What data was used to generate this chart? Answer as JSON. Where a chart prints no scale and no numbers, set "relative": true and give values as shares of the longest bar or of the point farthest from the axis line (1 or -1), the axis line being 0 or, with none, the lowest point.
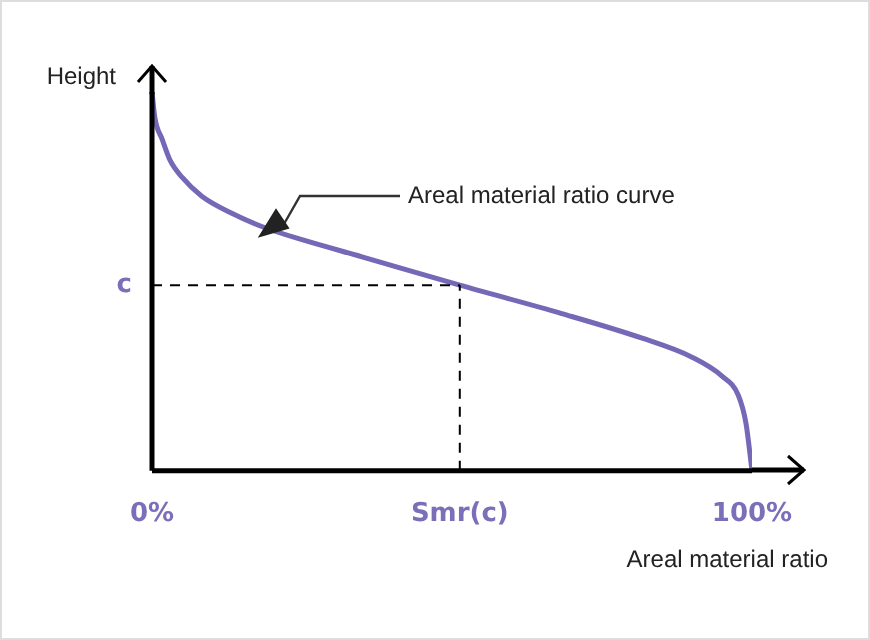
{
  "chart_data": {
    "type": "line",
    "relative": true,
    "xlabel": "Areal material ratio",
    "ylabel": "Height",
    "x": [
      0,
      0.5,
      1.7,
      3,
      5,
      8.3,
      13.3,
      18.3,
      25,
      35,
      51.3,
      68.3,
      81.7,
      90,
      95,
      97.7,
      99,
      100
    ],
    "values": [
      1,
      0.93,
      0.875,
      0.82,
      0.775,
      0.725,
      0.68,
      0.645,
      0.61,
      0.565,
      0.49,
      0.415,
      0.35,
      0.3,
      0.25,
      0.2,
      0.125,
      0
    ],
    "color": "#7469b6",
    "marker": "none",
    "line_style": "solid",
    "xlim": [
      0,
      100
    ],
    "xticks": [
      {
        "value": 0,
        "label": "0%"
      },
      {
        "value": 51.3,
        "label": "Smr(c)"
      },
      {
        "value": 100,
        "label": "100%"
      }
    ],
    "ref_lines": [
      {
        "axis": "y",
        "value": 0.49,
        "label": "c",
        "line_style": "dashed",
        "color": "#000000"
      },
      {
        "axis": "x",
        "value": 51.3,
        "label": null,
        "line_style": "dashed",
        "color": "#000000"
      }
    ],
    "annotations": [
      "Areal material ratio curve"
    ],
    "grid": false,
    "legend": false
  }
}
